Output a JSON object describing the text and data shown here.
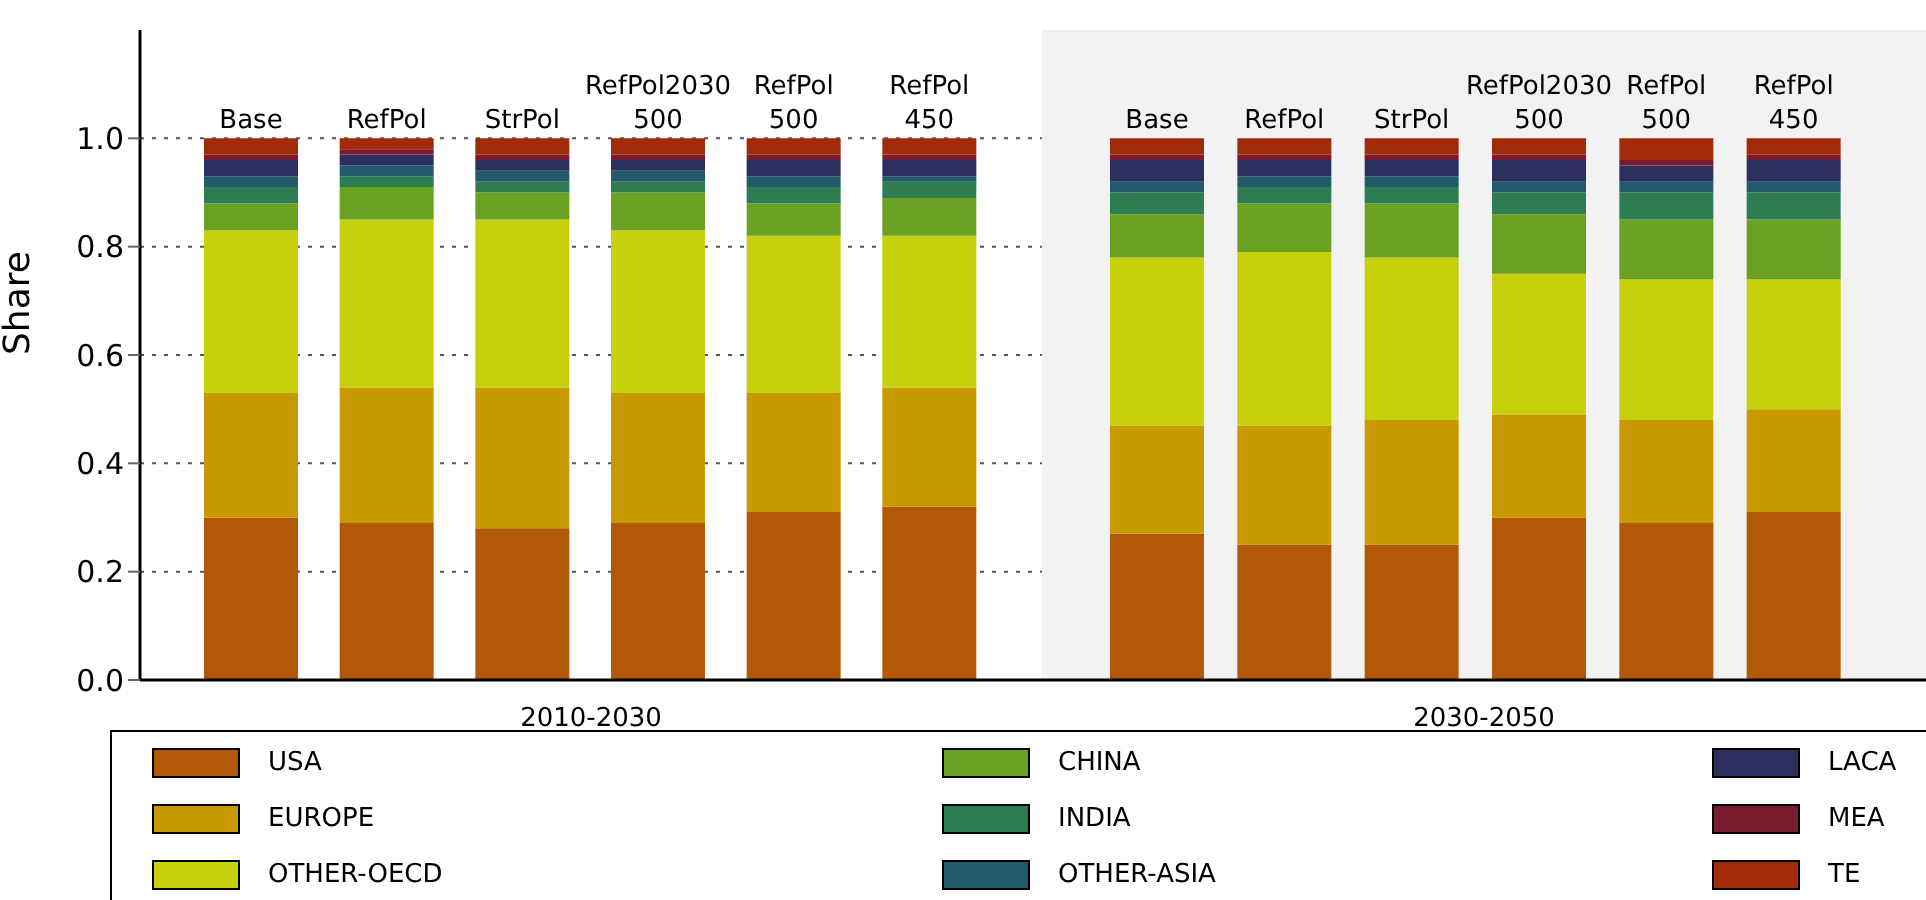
{
  "chart_data": [
    {
      "type": "bar",
      "stacked": true,
      "ylabel": "Share",
      "xlabel": "2010-2030",
      "categories": [
        "Base",
        "RefPol",
        "StrPol",
        "RefPol2030 500",
        "RefPol 500",
        "RefPol 450"
      ],
      "ylim": [
        0,
        1.2
      ],
      "yticks": [
        {
          "value": 0,
          "label": "0.0"
        },
        0.2,
        0.4,
        0.6,
        0.8,
        {
          "value": 1,
          "label": "1.0"
        }
      ],
      "grid": "y",
      "legend": "bottom",
      "series": [
        {
          "name": "USA",
          "color": "#b35806",
          "values": [
            0.3,
            0.29,
            0.28,
            0.29,
            0.31,
            0.32
          ]
        },
        {
          "name": "EUROPE",
          "color": "#c99a00",
          "values": [
            0.23,
            0.25,
            0.26,
            0.24,
            0.22,
            0.22
          ]
        },
        {
          "name": "OTHER-OECD",
          "color": "#c6d00c",
          "values": [
            0.3,
            0.31,
            0.31,
            0.3,
            0.29,
            0.28
          ]
        },
        {
          "name": "CHINA",
          "color": "#6aa121",
          "values": [
            0.05,
            0.06,
            0.05,
            0.07,
            0.06,
            0.07
          ]
        },
        {
          "name": "INDIA",
          "color": "#2e7d52",
          "values": [
            0.03,
            0.02,
            0.02,
            0.02,
            0.03,
            0.03
          ]
        },
        {
          "name": "OTHER-ASIA",
          "color": "#235a6a",
          "values": [
            0.02,
            0.02,
            0.02,
            0.02,
            0.02,
            0.01
          ]
        },
        {
          "name": "LACA",
          "color": "#2c2f5e",
          "values": [
            0.03,
            0.02,
            0.02,
            0.02,
            0.03,
            0.03
          ]
        },
        {
          "name": "MEA",
          "color": "#7a1a2e",
          "values": [
            0.01,
            0.01,
            0.01,
            0.01,
            0.01,
            0.01
          ]
        },
        {
          "name": "TE",
          "color": "#a02a0a",
          "values": [
            0.03,
            0.02,
            0.03,
            0.03,
            0.03,
            0.03
          ]
        }
      ]
    },
    {
      "type": "bar",
      "stacked": true,
      "xlabel": "2030-2050",
      "categories": [
        "Base",
        "RefPol",
        "StrPol",
        "RefPol2030 500",
        "RefPol 500",
        "RefPol 450"
      ],
      "ylim": [
        0,
        1.2
      ],
      "yticks": [
        0,
        0.2,
        0.4,
        0.6,
        0.8,
        1
      ],
      "grid": "y",
      "tick_labels": "x",
      "series": [
        {
          "color": "#b35806",
          "values": [
            0.27,
            0.25,
            0.25,
            0.3,
            0.29,
            0.31
          ]
        },
        {
          "color": "#c99a00",
          "values": [
            0.2,
            0.22,
            0.23,
            0.19,
            0.19,
            0.19
          ]
        },
        {
          "color": "#c6d00c",
          "values": [
            0.31,
            0.32,
            0.3,
            0.26,
            0.26,
            0.24
          ]
        },
        {
          "color": "#6aa121",
          "values": [
            0.08,
            0.09,
            0.1,
            0.11,
            0.11,
            0.11
          ]
        },
        {
          "color": "#2e7d52",
          "values": [
            0.04,
            0.03,
            0.03,
            0.04,
            0.05,
            0.05
          ]
        },
        {
          "color": "#235a6a",
          "values": [
            0.02,
            0.02,
            0.02,
            0.02,
            0.02,
            0.02
          ]
        },
        {
          "color": "#2c2f5e",
          "values": [
            0.04,
            0.03,
            0.03,
            0.04,
            0.03,
            0.04
          ]
        },
        {
          "color": "#7a1a2e",
          "values": [
            0.01,
            0.01,
            0.01,
            0.01,
            0.01,
            0.01
          ]
        },
        {
          "color": "#a02a0a",
          "values": [
            0.03,
            0.03,
            0.03,
            0.03,
            0.04,
            0.03
          ]
        }
      ]
    }
  ]
}
